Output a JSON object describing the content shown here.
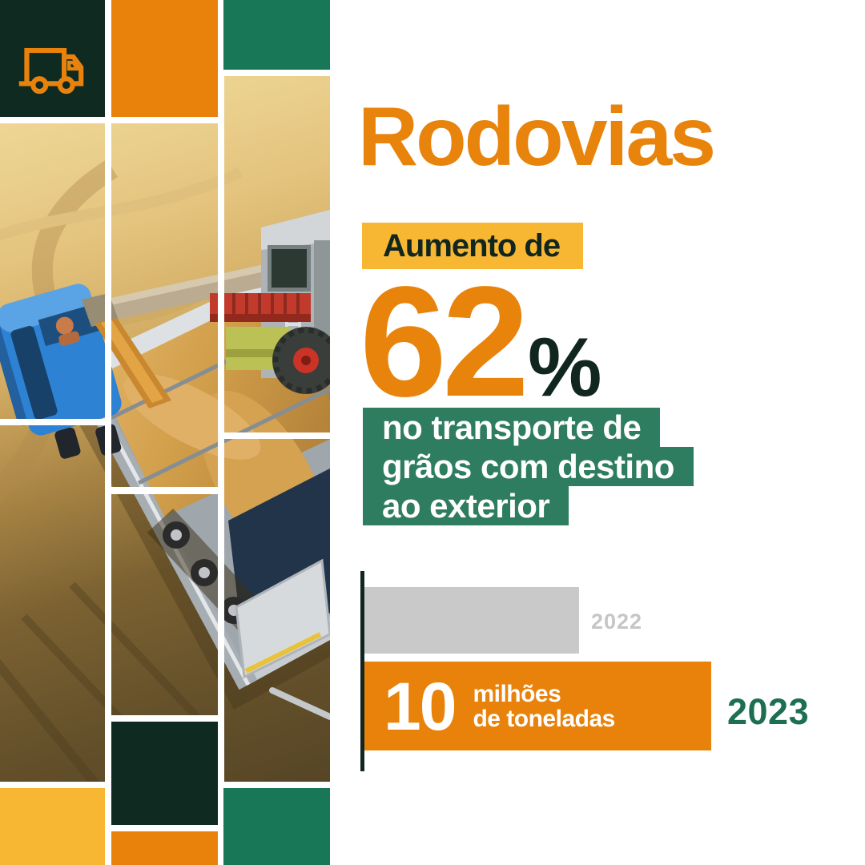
{
  "header": {
    "title": "Rodovias"
  },
  "badge": {
    "label": "Aumento de"
  },
  "stat": {
    "value": "62",
    "unit": "%"
  },
  "description": {
    "line1": "no transporte de",
    "line2": "grãos com destino",
    "line3": "ao exterior"
  },
  "icons": {
    "truck": "delivery-truck"
  },
  "colors": {
    "orange": "#E8820B",
    "title_orange": "#E8830C",
    "yellow": "#F8B733",
    "dark_green": "#0F2A21",
    "tile_green": "#177757",
    "text_dark": "#11261F",
    "highlight_green": "#2E7D61",
    "label_green": "#1D6F52",
    "bar_gray": "#C9C9C9",
    "label_gray": "#C6C6C6"
  },
  "chart_data": {
    "type": "bar",
    "orientation": "horizontal",
    "categories": [
      "2022",
      "2023"
    ],
    "series": [
      {
        "name": "grãos com destino ao exterior",
        "values": [
          6.2,
          10
        ]
      }
    ],
    "unit": "milhões de toneladas",
    "xlim": [
      0,
      10
    ],
    "values_estimated": [
      true,
      false
    ],
    "bar_colors": [
      "#C9C9C9",
      "#E8820B"
    ],
    "category_label_colors": [
      "#C6C6C6",
      "#1D6F52"
    ],
    "value_label_2023": {
      "number": "10",
      "line1": "milhões",
      "line2": "de toneladas"
    },
    "grid": false,
    "legend": false
  }
}
